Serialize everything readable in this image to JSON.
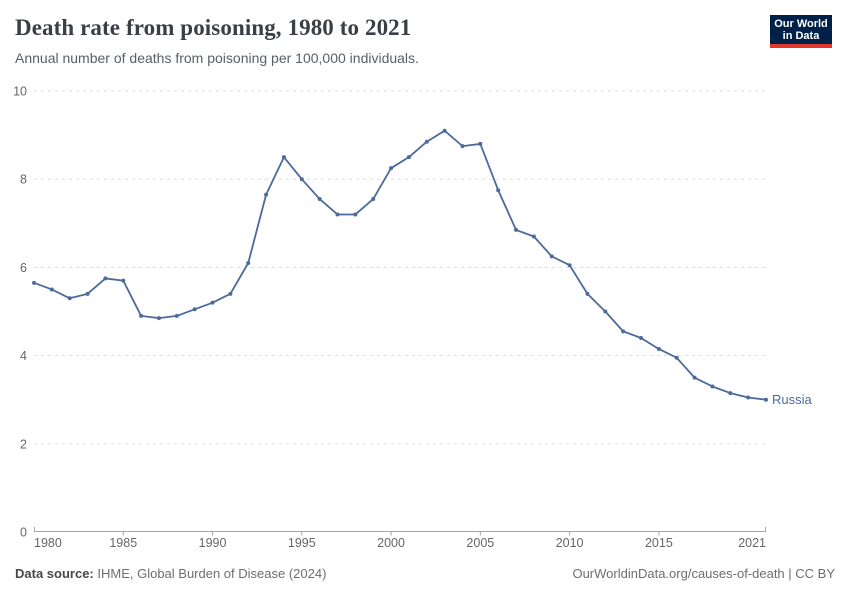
{
  "header": {
    "title": "Death rate from poisoning, 1980 to 2021",
    "subtitle": "Annual number of deaths from poisoning per 100,000 individuals."
  },
  "logo": {
    "line1": "Our World",
    "line2": "in Data",
    "bg_color": "#002147",
    "accent_color": "#e0362c"
  },
  "chart_data": {
    "type": "line",
    "title": "Death rate from poisoning, 1980 to 2021",
    "x": [
      1980,
      1981,
      1982,
      1983,
      1984,
      1985,
      1986,
      1987,
      1988,
      1989,
      1990,
      1991,
      1992,
      1993,
      1994,
      1995,
      1996,
      1997,
      1998,
      1999,
      2000,
      2001,
      2002,
      2003,
      2004,
      2005,
      2006,
      2007,
      2008,
      2009,
      2010,
      2011,
      2012,
      2013,
      2014,
      2015,
      2016,
      2017,
      2018,
      2019,
      2020,
      2021
    ],
    "series": [
      {
        "name": "Russia",
        "color": "#4c6a9c",
        "values": [
          5.65,
          5.5,
          5.3,
          5.4,
          5.75,
          5.7,
          4.9,
          4.85,
          4.9,
          5.05,
          5.2,
          5.4,
          6.1,
          7.65,
          8.5,
          8.0,
          7.55,
          7.2,
          7.2,
          7.55,
          8.25,
          8.5,
          8.85,
          9.1,
          8.75,
          8.8,
          7.75,
          6.85,
          6.7,
          6.25,
          6.05,
          5.4,
          5.0,
          4.55,
          4.4,
          4.15,
          3.95,
          3.5,
          3.3,
          3.15,
          3.05,
          3.0
        ]
      }
    ],
    "xlim": [
      1980,
      2021
    ],
    "ylim": [
      0,
      10
    ],
    "yticks": [
      0,
      2,
      4,
      6,
      8,
      10
    ],
    "xticks": [
      1980,
      1985,
      1990,
      1995,
      2000,
      2005,
      2010,
      2015,
      2021
    ],
    "grid": "horizontal-dashed",
    "legend": "line-end-label"
  },
  "colors": {
    "line": "#4c6a9c",
    "grid": "#dddddd",
    "axis": "#a5a5a5",
    "tick_text": "#666666"
  },
  "footer": {
    "source_label": "Data source:",
    "source_text": " IHME, Global Burden of Disease (2024)",
    "credit": "OurWorldinData.org/causes-of-death | CC BY"
  }
}
